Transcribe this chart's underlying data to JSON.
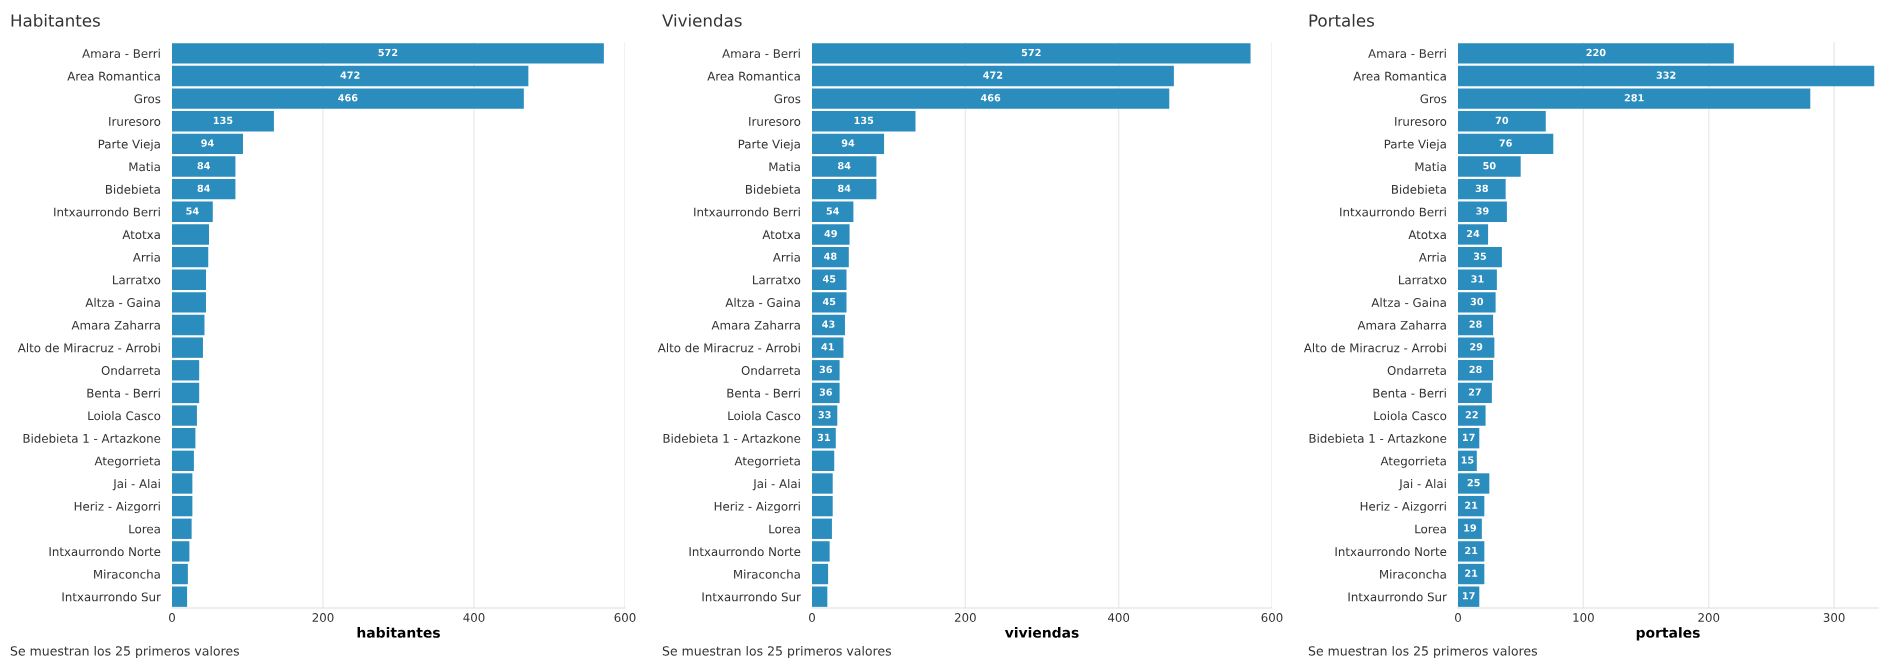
{
  "chart_data": [
    {
      "type": "bar",
      "orientation": "horizontal",
      "title": "Habitantes",
      "xlabel": "habitantes",
      "annotations": [
        "Se muestran los 25 primeros valores"
      ],
      "categories": [
        "Amara - Berri",
        "Area Romantica",
        "Gros",
        "Iruresoro",
        "Parte Vieja",
        "Matia",
        "Bidebieta",
        "Intxaurrondo Berri",
        "Atotxa",
        "Arria",
        "Larratxo",
        "Altza - Gaina",
        "Amara Zaharra",
        "Alto de Miracruz - Arrobi",
        "Ondarreta",
        "Benta - Berri",
        "Loiola Casco",
        "Bidebieta 1 - Artazkone",
        "Ategorrieta",
        "Jai - Alai",
        "Heriz - Aizgorri",
        "Lorea",
        "Intxaurrondo Norte",
        "Miraconcha",
        "Intxaurrondo Sur"
      ],
      "values": [
        572,
        472,
        466,
        135,
        94,
        84,
        84,
        54,
        49,
        48,
        45,
        45,
        43,
        41,
        36,
        36,
        33,
        31,
        29,
        27,
        27,
        26,
        23,
        21,
        20
      ],
      "value_labels": [
        "572",
        "472",
        "466",
        "135",
        "94",
        "84",
        "84",
        "54",
        null,
        null,
        null,
        null,
        null,
        null,
        null,
        null,
        null,
        null,
        null,
        null,
        null,
        null,
        null,
        null,
        null
      ],
      "color": "#2b8cbe",
      "xlim": [
        0,
        600
      ],
      "xticks": [
        0,
        200,
        400,
        600
      ],
      "grid": "x"
    },
    {
      "type": "bar",
      "orientation": "horizontal",
      "title": "Viviendas",
      "xlabel": "viviendas",
      "annotations": [
        "Se muestran los 25 primeros valores"
      ],
      "categories": [
        "Amara - Berri",
        "Area Romantica",
        "Gros",
        "Iruresoro",
        "Parte Vieja",
        "Matia",
        "Bidebieta",
        "Intxaurrondo Berri",
        "Atotxa",
        "Arria",
        "Larratxo",
        "Altza - Gaina",
        "Amara Zaharra",
        "Alto de Miracruz - Arrobi",
        "Ondarreta",
        "Benta - Berri",
        "Loiola Casco",
        "Bidebieta 1 - Artazkone",
        "Ategorrieta",
        "Jai - Alai",
        "Heriz - Aizgorri",
        "Lorea",
        "Intxaurrondo Norte",
        "Miraconcha",
        "Intxaurrondo Sur"
      ],
      "values": [
        572,
        472,
        466,
        135,
        94,
        84,
        84,
        54,
        49,
        48,
        45,
        45,
        43,
        41,
        36,
        36,
        33,
        31,
        29,
        27,
        27,
        26,
        23,
        21,
        20
      ],
      "value_labels": [
        "572",
        "472",
        "466",
        "135",
        "94",
        "84",
        "84",
        "54",
        "49",
        "48",
        "45",
        "45",
        "43",
        "41",
        "36",
        "36",
        "33",
        "31",
        null,
        null,
        null,
        null,
        null,
        null,
        null
      ],
      "color": "#2b8cbe",
      "xlim": [
        0,
        600
      ],
      "xticks": [
        0,
        200,
        400,
        600
      ],
      "grid": "x"
    },
    {
      "type": "bar",
      "orientation": "horizontal",
      "title": "Portales",
      "xlabel": "portales",
      "annotations": [
        "Se muestran los 25 primeros valores"
      ],
      "categories": [
        "Amara - Berri",
        "Area Romantica",
        "Gros",
        "Iruresoro",
        "Parte Vieja",
        "Matia",
        "Bidebieta",
        "Intxaurrondo Berri",
        "Atotxa",
        "Arria",
        "Larratxo",
        "Altza - Gaina",
        "Amara Zaharra",
        "Alto de Miracruz - Arrobi",
        "Ondarreta",
        "Benta - Berri",
        "Loiola Casco",
        "Bidebieta 1 - Artazkone",
        "Ategorrieta",
        "Jai - Alai",
        "Heriz - Aizgorri",
        "Lorea",
        "Intxaurrondo Norte",
        "Miraconcha",
        "Intxaurrondo Sur"
      ],
      "values": [
        220,
        332,
        281,
        70,
        76,
        50,
        38,
        39,
        24,
        35,
        31,
        30,
        28,
        29,
        28,
        27,
        22,
        17,
        15,
        25,
        21,
        19,
        21,
        21,
        17
      ],
      "data_labels": true,
      "color": "#2b8cbe",
      "xlim": [
        0,
        335
      ],
      "xticks": [
        0,
        100,
        200,
        300
      ],
      "grid": "x"
    }
  ]
}
